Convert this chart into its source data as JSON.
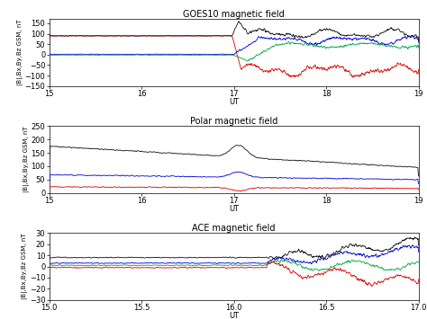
{
  "title1": "GOES10 magnetic field",
  "title2": "Polar magnetic field",
  "title3": "ACE magnetic field",
  "xlabel": "UT",
  "ylabel": "|B|,Bx,By,Bz GSM, nT",
  "panel1": {
    "xlim": [
      15,
      19
    ],
    "ylim": [
      -150,
      170
    ],
    "yticks": [
      -150,
      -100,
      -50,
      0,
      50,
      100,
      150
    ],
    "xticks": [
      15,
      16,
      17,
      18,
      19
    ]
  },
  "panel2": {
    "xlim": [
      15,
      19
    ],
    "ylim": [
      0,
      250
    ],
    "yticks": [
      0,
      50,
      100,
      150,
      200,
      250
    ],
    "xticks": [
      15,
      16,
      17,
      18,
      19
    ]
  },
  "panel3": {
    "xlim": [
      15.0,
      17.0
    ],
    "ylim": [
      -30,
      30
    ],
    "yticks": [
      -30,
      -20,
      -10,
      0,
      10,
      20,
      30
    ],
    "xticks": [
      15.0,
      15.5,
      16.0,
      16.5,
      17.0
    ]
  },
  "colors": {
    "black": "#111111",
    "red": "#dd0000",
    "blue": "#0000dd",
    "green": "#00aa44",
    "cyan": "#00aaaa"
  },
  "bg_color": "#ffffff",
  "linewidth": 0.6,
  "title_fontsize": 7,
  "tick_fontsize": 6,
  "label_fontsize": 5
}
